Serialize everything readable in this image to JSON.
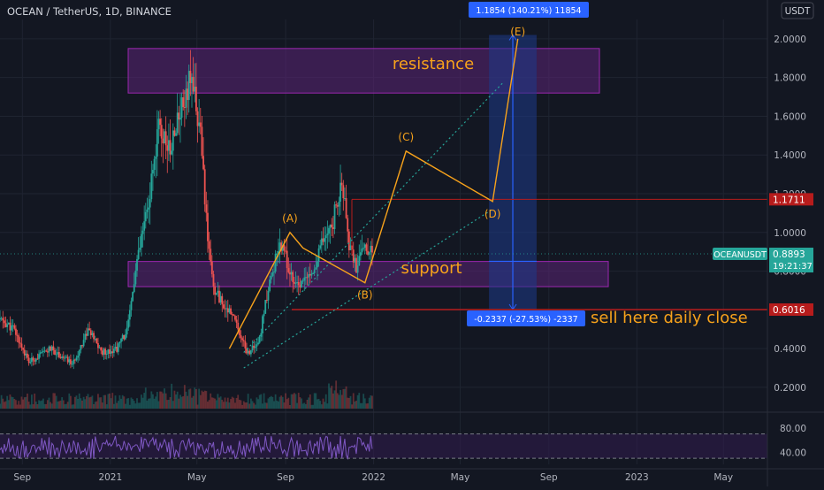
{
  "header": {
    "symbol_line": "OCEAN / TetherUS, 1D, BINANCE",
    "currency_badge": "USDT"
  },
  "colors": {
    "background": "#131722",
    "grid": "#1f2431",
    "axis_text": "#b2b5be",
    "candle_up": "#26a69a",
    "candle_down": "#ef5350",
    "wave": "#f7a21b",
    "channel": "#26a69a",
    "zone_fill": "#5b2477",
    "zone_border": "#9c27b0",
    "measure_fill": "#1e3a8a",
    "measure_line": "#2962ff",
    "red_line": "#b71c1c",
    "rsi_line": "#7e57c2"
  },
  "chart_data": {
    "type": "candlestick",
    "title": "OCEAN / TetherUS, 1D, BINANCE",
    "xlabel": "",
    "ylabel": "",
    "ylim": [
      0.09,
      2.1
    ],
    "y_ticks": [
      "2.0000",
      "1.8000",
      "1.6000",
      "1.4000",
      "1.2000",
      "1.0000",
      "0.8000",
      "0.6000",
      "0.4000",
      "0.2000"
    ],
    "x_ticks": [
      "Sep",
      "2021",
      "May",
      "Sep",
      "2022",
      "May",
      "Sep",
      "2023",
      "May"
    ],
    "price_path": [
      {
        "date": "2020-08-01",
        "price": 0.55
      },
      {
        "date": "2020-08-20",
        "price": 0.5
      },
      {
        "date": "2020-09-10",
        "price": 0.33
      },
      {
        "date": "2020-10-10",
        "price": 0.4
      },
      {
        "date": "2020-11-10",
        "price": 0.32
      },
      {
        "date": "2020-12-01",
        "price": 0.5
      },
      {
        "date": "2020-12-20",
        "price": 0.38
      },
      {
        "date": "2021-01-10",
        "price": 0.4
      },
      {
        "date": "2021-01-25",
        "price": 0.5
      },
      {
        "date": "2021-02-05",
        "price": 0.8
      },
      {
        "date": "2021-02-15",
        "price": 1.0
      },
      {
        "date": "2021-02-25",
        "price": 1.2
      },
      {
        "date": "2021-03-10",
        "price": 1.55
      },
      {
        "date": "2021-03-25",
        "price": 1.4
      },
      {
        "date": "2021-04-10",
        "price": 1.65
      },
      {
        "date": "2021-04-22",
        "price": 1.8
      },
      {
        "date": "2021-05-05",
        "price": 1.55
      },
      {
        "date": "2021-05-15",
        "price": 1.0
      },
      {
        "date": "2021-05-25",
        "price": 0.7
      },
      {
        "date": "2021-06-10",
        "price": 0.62
      },
      {
        "date": "2021-06-25",
        "price": 0.52
      },
      {
        "date": "2021-07-10",
        "price": 0.38
      },
      {
        "date": "2021-07-25",
        "price": 0.42
      },
      {
        "date": "2021-08-10",
        "price": 0.75
      },
      {
        "date": "2021-08-25",
        "price": 0.95
      },
      {
        "date": "2021-09-07",
        "price": 0.8
      },
      {
        "date": "2021-09-20",
        "price": 0.72
      },
      {
        "date": "2021-10-05",
        "price": 0.78
      },
      {
        "date": "2021-10-20",
        "price": 0.92
      },
      {
        "date": "2021-11-05",
        "price": 1.05
      },
      {
        "date": "2021-11-18",
        "price": 1.25
      },
      {
        "date": "2021-11-28",
        "price": 0.95
      },
      {
        "date": "2021-12-08",
        "price": 0.82
      },
      {
        "date": "2021-12-20",
        "price": 0.95
      },
      {
        "date": "2021-12-30",
        "price": 0.89
      }
    ],
    "current_price": 0.8893,
    "horizontal_levels": [
      {
        "label": "1.1711",
        "value": 1.1711
      },
      {
        "label": "0.6016",
        "value": 0.6016
      }
    ],
    "zones": [
      {
        "label": "resistance",
        "from": 1.72,
        "to": 1.95
      },
      {
        "label": "support",
        "from": 0.72,
        "to": 0.85
      }
    ],
    "wave_path": [
      {
        "label": "",
        "date": "2021-06-15",
        "value": 0.4
      },
      {
        "label": "(A)",
        "date": "2021-09-07",
        "value": 1.0
      },
      {
        "label": "",
        "date": "2021-09-25",
        "value": 0.92
      },
      {
        "label": "(B)",
        "date": "2021-12-20",
        "value": 0.74
      },
      {
        "label": "(C)",
        "date": "2022-02-15",
        "value": 1.42
      },
      {
        "label": "(D)",
        "date": "2022-06-15",
        "value": 1.16
      },
      {
        "label": "(E)",
        "date": "2022-07-20",
        "value": 2.0
      }
    ],
    "channel_lines": [
      {
        "from": {
          "date": "2021-07-05",
          "value": 0.38
        },
        "to": {
          "date": "2022-07-01",
          "value": 1.78
        }
      },
      {
        "from": {
          "date": "2021-07-05",
          "value": 0.3
        },
        "to": {
          "date": "2022-06-15",
          "value": 1.12
        }
      }
    ],
    "measure": {
      "from": 0.6016,
      "to": 2.02,
      "mid": 0.8508,
      "up_label": "1.1854 (140.21%) 11854",
      "down_label": "-0.2337 (-27.53%) -2337",
      "start_date": "2022-06-10",
      "end_date": "2022-08-15"
    },
    "annotations": {
      "resistance": "resistance",
      "support": "support",
      "sell": "sell here daily close"
    },
    "price_tags": {
      "symbol": "OCEANUSDT",
      "price": "0.8893",
      "countdown": "19:21:37"
    },
    "rsi": {
      "ylim": [
        20,
        100
      ],
      "upper": 70,
      "lower": 30,
      "ticks": [
        "80.00",
        "40.00"
      ],
      "mean": 48
    }
  }
}
